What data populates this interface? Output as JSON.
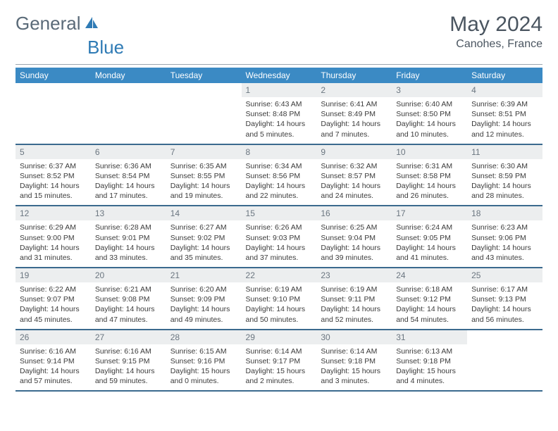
{
  "brand": {
    "part1": "General",
    "part2": "Blue",
    "color1": "#5a6a78",
    "color2": "#2f7bb5"
  },
  "title": "May 2024",
  "location": "Canohes, France",
  "header_bg": "#3b8ac4",
  "daynum_bg": "#eceeef",
  "row_border": "#3b6a8e",
  "weekdays": [
    "Sunday",
    "Monday",
    "Tuesday",
    "Wednesday",
    "Thursday",
    "Friday",
    "Saturday"
  ],
  "weeks": [
    [
      null,
      null,
      null,
      {
        "n": "1",
        "sr": "6:43 AM",
        "ss": "8:48 PM",
        "dl": "14 hours and 5 minutes."
      },
      {
        "n": "2",
        "sr": "6:41 AM",
        "ss": "8:49 PM",
        "dl": "14 hours and 7 minutes."
      },
      {
        "n": "3",
        "sr": "6:40 AM",
        "ss": "8:50 PM",
        "dl": "14 hours and 10 minutes."
      },
      {
        "n": "4",
        "sr": "6:39 AM",
        "ss": "8:51 PM",
        "dl": "14 hours and 12 minutes."
      }
    ],
    [
      {
        "n": "5",
        "sr": "6:37 AM",
        "ss": "8:52 PM",
        "dl": "14 hours and 15 minutes."
      },
      {
        "n": "6",
        "sr": "6:36 AM",
        "ss": "8:54 PM",
        "dl": "14 hours and 17 minutes."
      },
      {
        "n": "7",
        "sr": "6:35 AM",
        "ss": "8:55 PM",
        "dl": "14 hours and 19 minutes."
      },
      {
        "n": "8",
        "sr": "6:34 AM",
        "ss": "8:56 PM",
        "dl": "14 hours and 22 minutes."
      },
      {
        "n": "9",
        "sr": "6:32 AM",
        "ss": "8:57 PM",
        "dl": "14 hours and 24 minutes."
      },
      {
        "n": "10",
        "sr": "6:31 AM",
        "ss": "8:58 PM",
        "dl": "14 hours and 26 minutes."
      },
      {
        "n": "11",
        "sr": "6:30 AM",
        "ss": "8:59 PM",
        "dl": "14 hours and 28 minutes."
      }
    ],
    [
      {
        "n": "12",
        "sr": "6:29 AM",
        "ss": "9:00 PM",
        "dl": "14 hours and 31 minutes."
      },
      {
        "n": "13",
        "sr": "6:28 AM",
        "ss": "9:01 PM",
        "dl": "14 hours and 33 minutes."
      },
      {
        "n": "14",
        "sr": "6:27 AM",
        "ss": "9:02 PM",
        "dl": "14 hours and 35 minutes."
      },
      {
        "n": "15",
        "sr": "6:26 AM",
        "ss": "9:03 PM",
        "dl": "14 hours and 37 minutes."
      },
      {
        "n": "16",
        "sr": "6:25 AM",
        "ss": "9:04 PM",
        "dl": "14 hours and 39 minutes."
      },
      {
        "n": "17",
        "sr": "6:24 AM",
        "ss": "9:05 PM",
        "dl": "14 hours and 41 minutes."
      },
      {
        "n": "18",
        "sr": "6:23 AM",
        "ss": "9:06 PM",
        "dl": "14 hours and 43 minutes."
      }
    ],
    [
      {
        "n": "19",
        "sr": "6:22 AM",
        "ss": "9:07 PM",
        "dl": "14 hours and 45 minutes."
      },
      {
        "n": "20",
        "sr": "6:21 AM",
        "ss": "9:08 PM",
        "dl": "14 hours and 47 minutes."
      },
      {
        "n": "21",
        "sr": "6:20 AM",
        "ss": "9:09 PM",
        "dl": "14 hours and 49 minutes."
      },
      {
        "n": "22",
        "sr": "6:19 AM",
        "ss": "9:10 PM",
        "dl": "14 hours and 50 minutes."
      },
      {
        "n": "23",
        "sr": "6:19 AM",
        "ss": "9:11 PM",
        "dl": "14 hours and 52 minutes."
      },
      {
        "n": "24",
        "sr": "6:18 AM",
        "ss": "9:12 PM",
        "dl": "14 hours and 54 minutes."
      },
      {
        "n": "25",
        "sr": "6:17 AM",
        "ss": "9:13 PM",
        "dl": "14 hours and 56 minutes."
      }
    ],
    [
      {
        "n": "26",
        "sr": "6:16 AM",
        "ss": "9:14 PM",
        "dl": "14 hours and 57 minutes."
      },
      {
        "n": "27",
        "sr": "6:16 AM",
        "ss": "9:15 PM",
        "dl": "14 hours and 59 minutes."
      },
      {
        "n": "28",
        "sr": "6:15 AM",
        "ss": "9:16 PM",
        "dl": "15 hours and 0 minutes."
      },
      {
        "n": "29",
        "sr": "6:14 AM",
        "ss": "9:17 PM",
        "dl": "15 hours and 2 minutes."
      },
      {
        "n": "30",
        "sr": "6:14 AM",
        "ss": "9:18 PM",
        "dl": "15 hours and 3 minutes."
      },
      {
        "n": "31",
        "sr": "6:13 AM",
        "ss": "9:18 PM",
        "dl": "15 hours and 4 minutes."
      },
      null
    ]
  ],
  "labels": {
    "sunrise": "Sunrise:",
    "sunset": "Sunset:",
    "daylight": "Daylight:"
  }
}
